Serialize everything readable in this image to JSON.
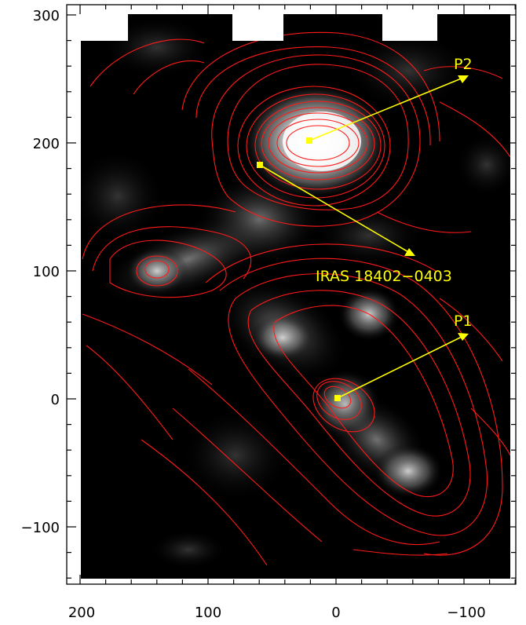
{
  "figure": {
    "x_ticks": [
      "200",
      "100",
      "0",
      "−100"
    ],
    "y_ticks": [
      "300",
      "200",
      "100",
      "0",
      "−100"
    ],
    "annotations": {
      "p2": "P2",
      "iras": "IRAS 18402−0403",
      "p1": "P1"
    },
    "colors": {
      "contour": "#ff1a1a",
      "annotation": "#ffff00",
      "background": "#000000"
    }
  }
}
